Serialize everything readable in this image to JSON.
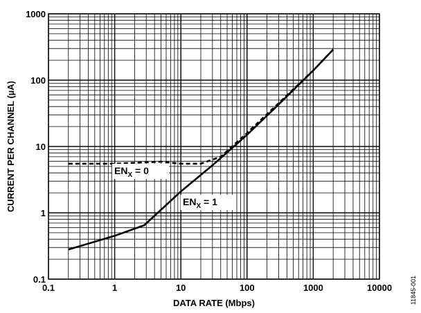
{
  "chart_data": {
    "type": "line",
    "xlabel": "DATA RATE (Mbps)",
    "ylabel": "CURRENT PER CHANNEL (µA)",
    "xscale": "log",
    "yscale": "log",
    "xlim": [
      0.1,
      10000
    ],
    "ylim": [
      0.1,
      1000
    ],
    "grid": true,
    "x_tick_labels": [
      "0.1",
      "1",
      "10",
      "100",
      "1000",
      "10000"
    ],
    "y_tick_labels": [
      "0.1",
      "1",
      "10",
      "100",
      "1000"
    ],
    "series": [
      {
        "name": "EN_X = 0",
        "style": "dashed",
        "x": [
          0.2,
          1,
          5,
          10,
          20,
          40,
          100,
          300,
          1000,
          2000
        ],
        "y": [
          5.5,
          5.5,
          5.9,
          5.5,
          5.5,
          7,
          16,
          45,
          140,
          290
        ]
      },
      {
        "name": "EN_X = 1",
        "style": "solid",
        "x": [
          0.2,
          1,
          2.8,
          10,
          30,
          100,
          300,
          1000,
          2000
        ],
        "y": [
          0.28,
          0.45,
          0.65,
          2.1,
          5.2,
          15,
          43,
          140,
          290
        ]
      }
    ],
    "annotations": [
      {
        "text_main": "EN",
        "text_sub": "X",
        "text_rest": " = 0"
      },
      {
        "text_main": "EN",
        "text_sub": "X",
        "text_rest": " = 1"
      }
    ],
    "figure_id": "11845-001",
    "colors": {
      "line": "#000000",
      "grid": "#000000",
      "background": "#ffffff"
    }
  }
}
